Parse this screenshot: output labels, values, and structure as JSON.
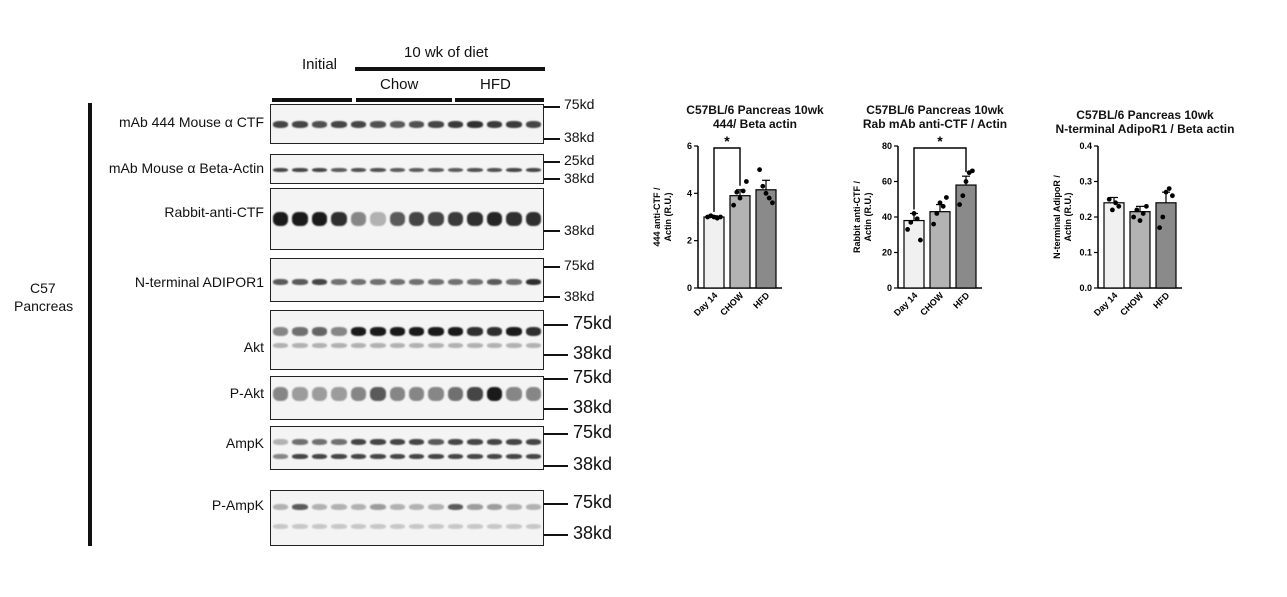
{
  "western": {
    "headers": {
      "initial": "Initial",
      "weeks": "10 wk of diet",
      "chow": "Chow",
      "hfd": "HFD"
    },
    "tissue_label": [
      "C57",
      "Pancreas"
    ],
    "blots": [
      {
        "label": "mAb 444 Mouse α CTF",
        "markers": [
          "75kd",
          "38kd"
        ]
      },
      {
        "label": "mAb Mouse α Beta-Actin",
        "markers": [
          "25kd",
          "38kd"
        ]
      },
      {
        "label": "Rabbit-anti-CTF",
        "markers": [
          "38kd"
        ]
      },
      {
        "label": "N-terminal ADIPOR1",
        "markers": [
          "75kd",
          "38kd"
        ]
      },
      {
        "label": "Akt",
        "markers": [
          "75kd",
          "38kd"
        ]
      },
      {
        "label": "P-Akt",
        "markers": [
          "75kd",
          "38kd"
        ]
      },
      {
        "label": "AmpK",
        "markers": [
          "75kd",
          "38kd"
        ]
      },
      {
        "label": "P-AmpK",
        "markers": [
          "75kd",
          "38kd"
        ]
      }
    ],
    "colors": {
      "band": "#1a1a1a",
      "membrane": "#f4f4f4"
    }
  },
  "chart_data": [
    {
      "type": "bar",
      "title": [
        "C57BL/6 Pancreas 10wk",
        "444/ Beta actin"
      ],
      "ylabel": [
        "444 anti-CTF /",
        "Actin (R.U.)"
      ],
      "categories": [
        "Day 14",
        "CHOW",
        "HFD"
      ],
      "values": [
        3.0,
        3.9,
        4.15
      ],
      "errors": [
        0.05,
        0.25,
        0.4
      ],
      "points": [
        [
          3.0,
          3.05,
          3.0,
          2.95,
          3.0
        ],
        [
          3.5,
          4.05,
          3.8,
          4.1,
          4.5
        ],
        [
          5.0,
          4.3,
          4.0,
          3.8,
          3.6
        ]
      ],
      "ylim": [
        0,
        6
      ],
      "yticks": [
        "0",
        "2",
        "4",
        "6"
      ],
      "significance": {
        "from": 0,
        "to": 1,
        "label": "*"
      },
      "colors": [
        "#f0f0f0",
        "#b3b3b3",
        "#8a8a8a"
      ]
    },
    {
      "type": "bar",
      "title": [
        "C57BL/6 Pancreas 10wk",
        "Rab mAb anti-CTF / Actin"
      ],
      "ylabel": [
        "Rabbit anti-CTF /",
        "Actin (R.U.)"
      ],
      "categories": [
        "Day 14",
        "CHOW",
        "HFD"
      ],
      "values": [
        38,
        43,
        58
      ],
      "errors": [
        4,
        4,
        5
      ],
      "points": [
        [
          33,
          37,
          42,
          39,
          27
        ],
        [
          36,
          42,
          48,
          46,
          51
        ],
        [
          47,
          52,
          60,
          65,
          66
        ]
      ],
      "ylim": [
        0,
        80
      ],
      "yticks": [
        "0",
        "20",
        "40",
        "60",
        "80"
      ],
      "significance": {
        "from": 0,
        "to": 2,
        "label": "*"
      },
      "colors": [
        "#f0f0f0",
        "#b3b3b3",
        "#8a8a8a"
      ]
    },
    {
      "type": "bar",
      "title": [
        "C57BL/6 Pancreas 10wk",
        "N-terminal AdipoR1 / Beta actin"
      ],
      "ylabel": [
        "N-terminal AdipoR /",
        "Actin (R.U.)"
      ],
      "categories": [
        "Day 14",
        "CHOW",
        "HFD"
      ],
      "values": [
        0.24,
        0.215,
        0.24
      ],
      "errors": [
        0.015,
        0.015,
        0.03
      ],
      "points": [
        [
          0.25,
          0.22,
          0.24,
          0.23
        ],
        [
          0.2,
          0.22,
          0.19,
          0.21,
          0.23
        ],
        [
          0.17,
          0.2,
          0.27,
          0.28,
          0.26
        ]
      ],
      "ylim": [
        0,
        0.4
      ],
      "yticks": [
        "0.0",
        "0.1",
        "0.2",
        "0.3",
        "0.4"
      ],
      "significance": null,
      "colors": [
        "#f0f0f0",
        "#b3b3b3",
        "#8a8a8a"
      ]
    }
  ]
}
